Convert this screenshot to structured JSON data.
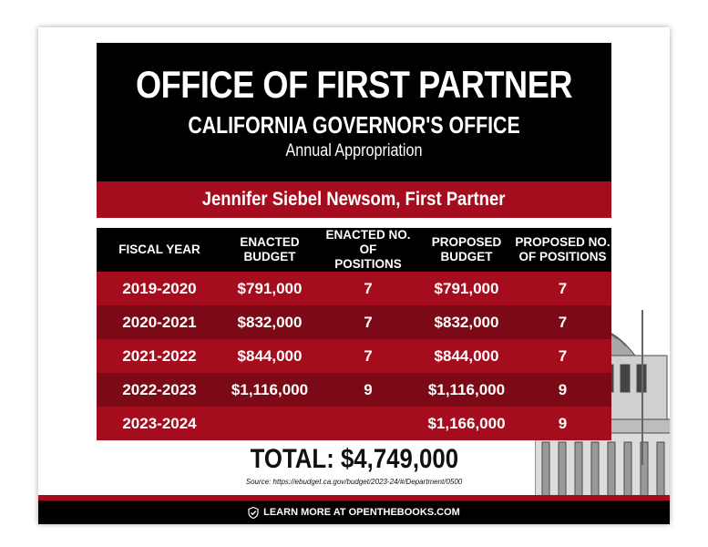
{
  "header": {
    "title": "OFFICE OF FIRST PARTNER",
    "subtitle": "CALIFORNIA GOVERNOR'S OFFICE",
    "caption": "Annual Appropriation"
  },
  "name_bar": "Jennifer Siebel Newsom, First Partner",
  "table": {
    "columns": [
      "FISCAL YEAR",
      "ENACTED BUDGET",
      "ENACTED NO. OF POSITIONS",
      "PROPOSED BUDGET",
      "PROPOSED NO. OF POSITIONS"
    ],
    "column_lines": [
      [
        "FISCAL YEAR"
      ],
      [
        "ENACTED",
        "BUDGET"
      ],
      [
        "ENACTED NO. OF",
        "POSITIONS"
      ],
      [
        "PROPOSED",
        "BUDGET"
      ],
      [
        "PROPOSED NO.",
        "OF POSITIONS"
      ]
    ],
    "rows": [
      [
        "2019-2020",
        "$791,000",
        "7",
        "$791,000",
        "7"
      ],
      [
        "2020-2021",
        "$832,000",
        "7",
        "$832,000",
        "7"
      ],
      [
        "2021-2022",
        "$844,000",
        "7",
        "$844,000",
        "7"
      ],
      [
        "2022-2023",
        "$1,116,000",
        "9",
        "$1,116,000",
        "9"
      ],
      [
        "2023-2024",
        "",
        "",
        "$1,166,000",
        "9"
      ]
    ]
  },
  "total": "TOTAL: $4,749,000",
  "source": "Source: https://ebudget.ca.gov/budget/2023-24/#/Department/0500",
  "footer": {
    "label": "LEARN MORE AT OPENTHEBOOKS.COM",
    "icon": "check-shield-icon"
  },
  "colors": {
    "black": "#000000",
    "red_light": "#a50d1e",
    "red_dark": "#7b0a16",
    "white": "#ffffff"
  }
}
